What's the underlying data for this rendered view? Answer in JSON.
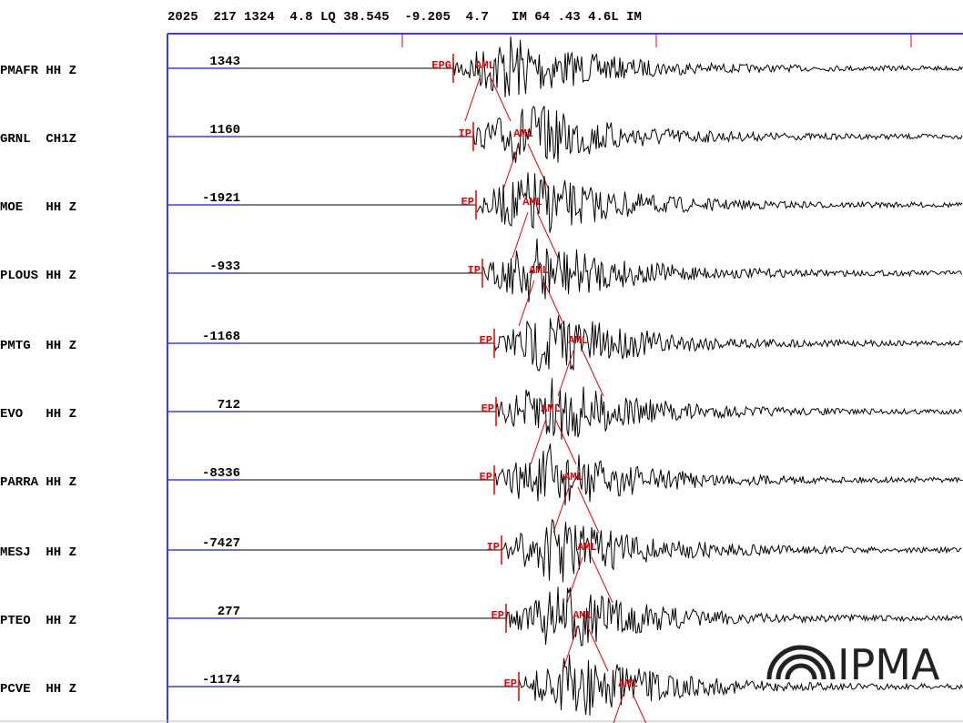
{
  "header": {
    "event_line": "2025  217 1324  4.8 LQ 38.545  -9.205  4.7   IM 64 .43 4.6L IM"
  },
  "traces": [
    {
      "station": "PMAFR HH Z",
      "amplitude": "1343",
      "first_pick": "EPG",
      "amp_pick": "AML"
    },
    {
      "station": "GRNL  CH1Z",
      "amplitude": "1160",
      "first_pick": "IP",
      "amp_pick": "AML"
    },
    {
      "station": "MOE   HH Z",
      "amplitude": "-1921",
      "first_pick": "EP",
      "amp_pick": "AML"
    },
    {
      "station": "PLOUS HH Z",
      "amplitude": "-933",
      "first_pick": "IP",
      "amp_pick": "AML"
    },
    {
      "station": "PMTG  HH Z",
      "amplitude": "-1168",
      "first_pick": "EP",
      "amp_pick": "AML"
    },
    {
      "station": "EVO   HH Z",
      "amplitude": "712",
      "first_pick": "EP",
      "amp_pick": "AML"
    },
    {
      "station": "PARRA HH Z",
      "amplitude": "-8336",
      "first_pick": "EP",
      "amp_pick": "AML"
    },
    {
      "station": "MESJ  HH Z",
      "amplitude": "-7427",
      "first_pick": "IP",
      "amp_pick": "AML"
    },
    {
      "station": "PTEO  HH Z",
      "amplitude": "277",
      "first_pick": "EP",
      "amp_pick": "AML"
    },
    {
      "station": "PCVE  HH Z",
      "amplitude": "-1174",
      "first_pick": "EP",
      "amp_pick": "AML"
    }
  ],
  "logo": {
    "text": "IPMA"
  }
}
